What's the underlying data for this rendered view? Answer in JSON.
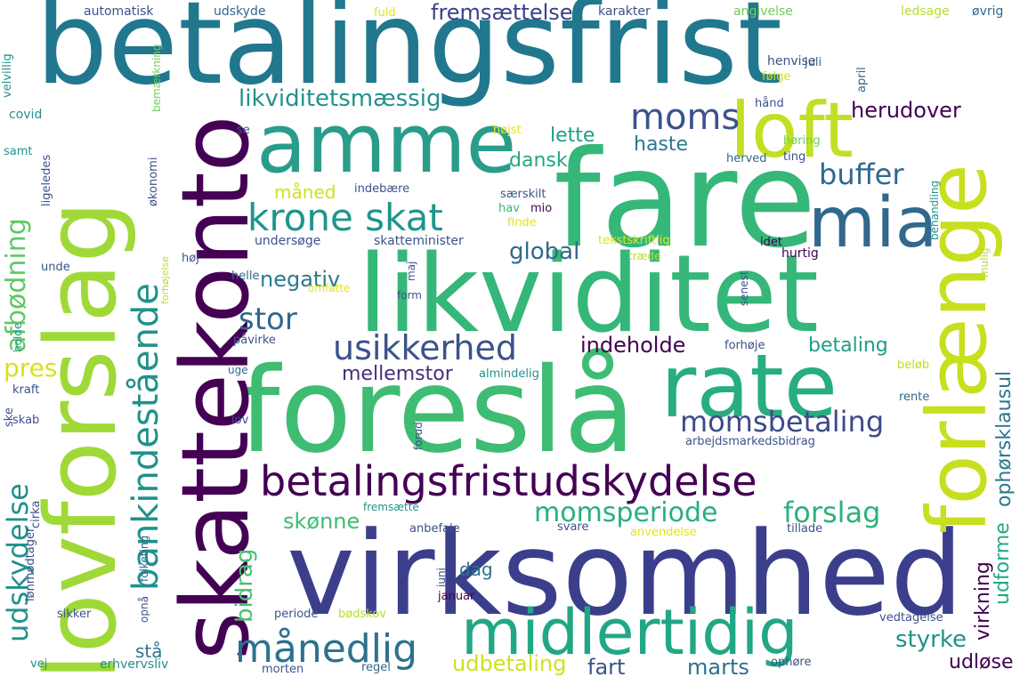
{
  "palette": {
    "purple": "#440154",
    "indigo": "#3b528b",
    "blue": "#31688e",
    "teal": "#21918c",
    "green": "#35b779",
    "lime": "#6ece58",
    "yellowgreen": "#b5de2b",
    "yellow": "#e4e419"
  },
  "words": [
    "betalingsfrist",
    "fare",
    "virksomhed",
    "foreslå",
    "likviditet",
    "skattekonto",
    "lovforslag",
    "forlænge",
    "amme",
    "rate",
    "mia",
    "loft",
    "midlertidig",
    "betalingsfristudskydelse",
    "krone skat",
    "moms",
    "usikkerhed",
    "månedlig",
    "bankindestående",
    "momsbetaling",
    "stor",
    "udskydelse",
    "afbødning",
    "momsperiode",
    "forslag",
    "buffer",
    "likviditetsmæssig",
    "herudover",
    "fremsættelse",
    "global",
    "negativ",
    "indeholde",
    "mellemstor",
    "lette",
    "dansk",
    "haste",
    "måned",
    "betaling",
    "bidrag",
    "skønne",
    "styrke",
    "udbetaling",
    "fart",
    "marts",
    "ophørsklausul",
    "virkning",
    "udforme",
    "udløse",
    "pres",
    "stå",
    "dag",
    "automatisk",
    "udskyde",
    "karakter",
    "angivelse",
    "ledsage",
    "øvrig",
    "fuld",
    "juli",
    "henvise",
    "april",
    "velvillig",
    "bemærkning",
    "covid",
    "samt",
    "ligeledes",
    "økonomi",
    "se",
    "højst",
    "hånd",
    "følge",
    "høring",
    "herved",
    "ting",
    "indebære",
    "særskilt",
    "hav",
    "mio",
    "finde",
    "undersøge",
    "skatteminister",
    "tekstskriftlig",
    "idet",
    "unde",
    "høj",
    "helle",
    "forhøjelse",
    "maj",
    "form",
    "omfatte",
    "træde",
    "hurtig",
    "senest",
    "behandling",
    "mulig",
    "påvirke",
    "forhøje",
    "uge",
    "almindelig",
    "beløb",
    "rente",
    "kraft",
    "skab",
    "ske",
    "lov",
    "forud",
    "arbejdsmarkedsbidrag",
    "cirka",
    "fremsætte",
    "anbefale",
    "svare",
    "anvendelse",
    "tillade",
    "folketing",
    "lønmodtager",
    "juni",
    "sikker",
    "opnå",
    "periode",
    "bødskov",
    "januar",
    "vedtagelse",
    "vej",
    "erhvervsliv",
    "morten",
    "regel",
    "ophøre",
    "holde"
  ]
}
